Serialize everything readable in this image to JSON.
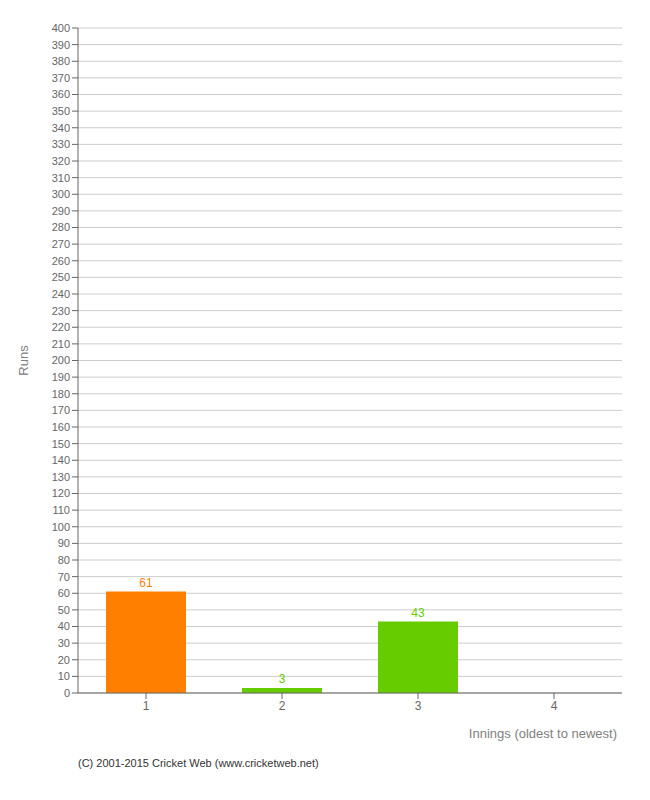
{
  "chart_data": {
    "type": "bar",
    "categories": [
      1,
      2,
      3,
      4
    ],
    "values": [
      61,
      3,
      43,
      0
    ],
    "colors": [
      "#ff8000",
      "#66cc00",
      "#66cc00",
      "#66cc00"
    ],
    "xlabel": "Innings (oldest to newest)",
    "ylabel": "Runs",
    "ylim": [
      0,
      400
    ],
    "yticks": [
      0,
      10,
      20,
      30,
      40,
      50,
      60,
      70,
      80,
      90,
      100,
      110,
      120,
      130,
      140,
      150,
      160,
      170,
      180,
      190,
      200,
      210,
      220,
      230,
      240,
      250,
      260,
      270,
      280,
      290,
      300,
      310,
      320,
      330,
      340,
      350,
      360,
      370,
      380,
      390,
      400
    ],
    "grid": true,
    "data_labels": true,
    "annotations": [
      "(C) 2001-2015 Cricket Web (www.cricketweb.net)"
    ]
  }
}
